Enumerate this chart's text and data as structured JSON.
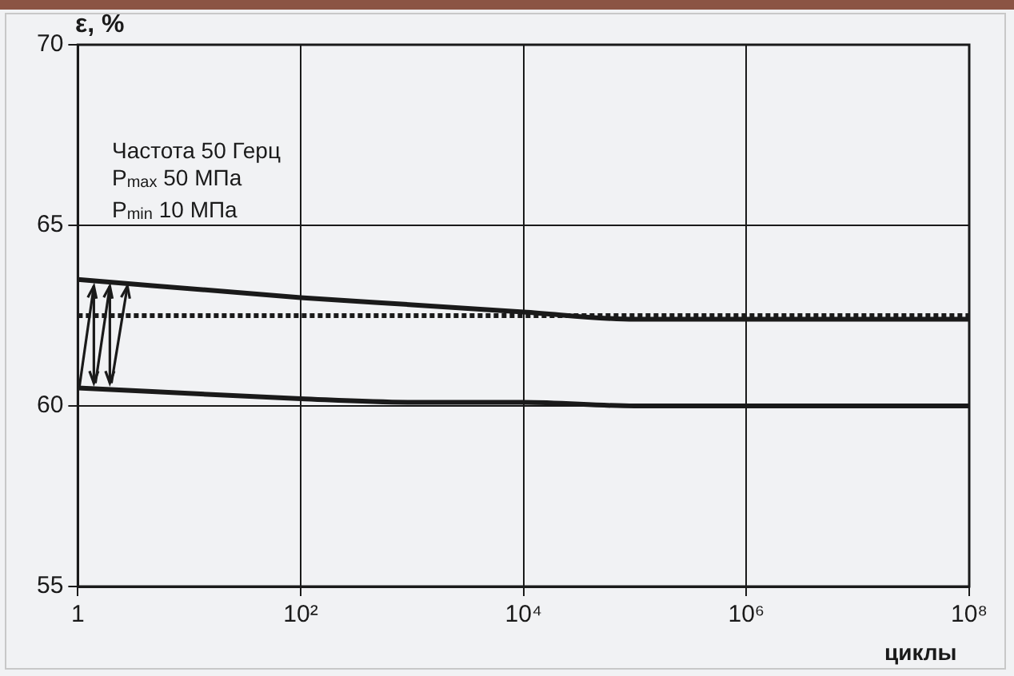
{
  "chart_data": {
    "type": "line",
    "ylabel": "ε, %",
    "xlabel": "циклы",
    "annotations": [
      "Частота 50 Герц",
      "P$_{max}$ 50 МПа",
      "P$_{min}$ 10 МПа"
    ],
    "x": [
      1,
      100,
      1000,
      10000,
      100000,
      1000000,
      100000000
    ],
    "series": [
      {
        "color": "#1a1a1a",
        "values": [
          63.5,
          63.0,
          62.8,
          62.6,
          62.4,
          62.4,
          62.4
        ]
      },
      {
        "color": "#1a1a1a",
        "values": [
          60.5,
          60.2,
          60.1,
          60.1,
          60.0,
          60.0,
          60.0
        ]
      }
    ],
    "xlim": [
      1,
      100000000
    ],
    "xticks": [
      1,
      {
        "value": 100,
        "label": "10²"
      },
      {
        "value": 10000,
        "label": "10⁴"
      },
      {
        "value": 1000000,
        "label": "10⁶"
      },
      {
        "value": 100000000,
        "label": "10⁸"
      }
    ],
    "ylim": [
      55,
      70
    ],
    "yticks": [
      55,
      60,
      65,
      70
    ],
    "log": "x",
    "grid": true,
    "ref_lines": [
      {
        "axis": "y",
        "value": 62.5,
        "color": "#1a1a1a",
        "line_style": "dotted"
      }
    ]
  }
}
